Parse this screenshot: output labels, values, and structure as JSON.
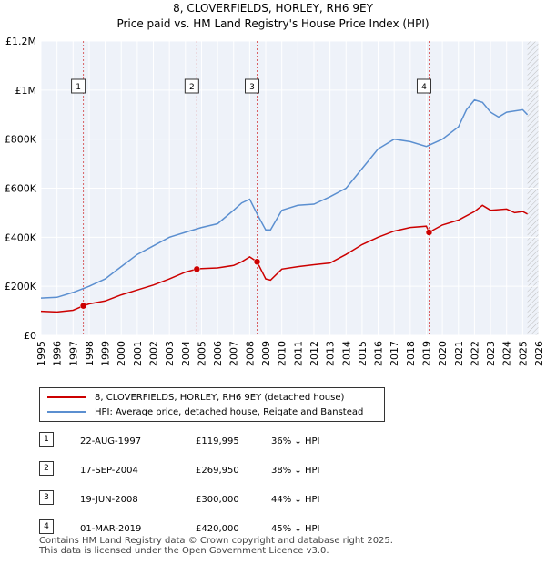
{
  "title": {
    "line1": "8, CLOVERFIELDS, HORLEY, RH6 9EY",
    "line2": "Price paid vs. HM Land Registry's House Price Index (HPI)"
  },
  "legend": {
    "items": [
      {
        "label": "8, CLOVERFIELDS, HORLEY, RH6 9EY (detached house)",
        "color": "#cc0000"
      },
      {
        "label": "HPI: Average price, detached house, Reigate and Banstead",
        "color": "#5b8fd0"
      }
    ]
  },
  "sales": [
    {
      "num": "1",
      "date": "22-AUG-1997",
      "price": "£119,995",
      "hpi": "36% ↓ HPI"
    },
    {
      "num": "2",
      "date": "17-SEP-2004",
      "price": "£269,950",
      "hpi": "38% ↓ HPI"
    },
    {
      "num": "3",
      "date": "19-JUN-2008",
      "price": "£300,000",
      "hpi": "44% ↓ HPI"
    },
    {
      "num": "4",
      "date": "01-MAR-2019",
      "price": "£420,000",
      "hpi": "45% ↓ HPI"
    }
  ],
  "footer": {
    "line1": "Contains HM Land Registry data © Crown copyright and database right 2025.",
    "line2": "This data is licensed under the Open Government Licence v3.0."
  },
  "chart_data": {
    "type": "line",
    "xlim": [
      1995,
      2026
    ],
    "ylim": [
      0,
      1200000
    ],
    "y_ticks": [
      0,
      200000,
      400000,
      600000,
      800000,
      1000000,
      1200000
    ],
    "y_tick_labels": [
      "£0",
      "£200K",
      "£400K",
      "£600K",
      "£800K",
      "£1M",
      "£1.2M"
    ],
    "x_ticks": [
      1995,
      1996,
      1997,
      1998,
      1999,
      2000,
      2001,
      2002,
      2003,
      2004,
      2005,
      2006,
      2007,
      2008,
      2009,
      2010,
      2011,
      2012,
      2013,
      2014,
      2015,
      2016,
      2017,
      2018,
      2019,
      2020,
      2021,
      2022,
      2023,
      2024,
      2025,
      2026
    ],
    "data_end": 2025.3,
    "series": [
      {
        "name": "8, CLOVERFIELDS, HORLEY, RH6 9EY (detached house)",
        "color": "#cc0000",
        "x": [
          1995,
          1996,
          1997,
          1997.64,
          1998,
          1999,
          2000,
          2001,
          2002,
          2003,
          2004,
          2004.71,
          2005,
          2006,
          2007,
          2007.5,
          2008,
          2008.46,
          2009,
          2009.3,
          2010,
          2011,
          2012,
          2013,
          2014,
          2015,
          2016,
          2017,
          2018,
          2019,
          2019.17,
          2020,
          2021,
          2022,
          2022.5,
          2023,
          2024,
          2024.5,
          2025,
          2025.3
        ],
        "y": [
          98000,
          95000,
          102000,
          119995,
          128000,
          140000,
          165000,
          185000,
          205000,
          230000,
          258000,
          269950,
          272000,
          275000,
          285000,
          300000,
          320000,
          300000,
          230000,
          225000,
          270000,
          280000,
          288000,
          295000,
          330000,
          370000,
          400000,
          425000,
          440000,
          445000,
          420000,
          450000,
          470000,
          505000,
          530000,
          510000,
          515000,
          500000,
          505000,
          495000
        ]
      },
      {
        "name": "HPI: Average price, detached house, Reigate and Banstead",
        "color": "#5b8fd0",
        "x": [
          1995,
          1996,
          1997,
          1998,
          1999,
          2000,
          2001,
          2002,
          2003,
          2004,
          2005,
          2006,
          2007,
          2007.5,
          2008,
          2008.5,
          2009,
          2009.3,
          2010,
          2011,
          2012,
          2013,
          2014,
          2015,
          2016,
          2017,
          2018,
          2019,
          2020,
          2021,
          2021.5,
          2022,
          2022.5,
          2023,
          2023.5,
          2024,
          2025,
          2025.3
        ],
        "y": [
          152000,
          155000,
          175000,
          200000,
          230000,
          280000,
          330000,
          365000,
          400000,
          420000,
          440000,
          455000,
          510000,
          540000,
          555000,
          490000,
          430000,
          430000,
          510000,
          530000,
          535000,
          565000,
          600000,
          680000,
          760000,
          800000,
          790000,
          770000,
          800000,
          850000,
          920000,
          960000,
          950000,
          910000,
          890000,
          910000,
          920000,
          900000
        ]
      }
    ],
    "sale_markers": [
      {
        "label": "1",
        "x": 1997.64,
        "y": 119995
      },
      {
        "label": "2",
        "x": 2004.71,
        "y": 269950
      },
      {
        "label": "3",
        "x": 2008.46,
        "y": 300000
      },
      {
        "label": "4",
        "x": 2019.17,
        "y": 420000
      }
    ]
  }
}
